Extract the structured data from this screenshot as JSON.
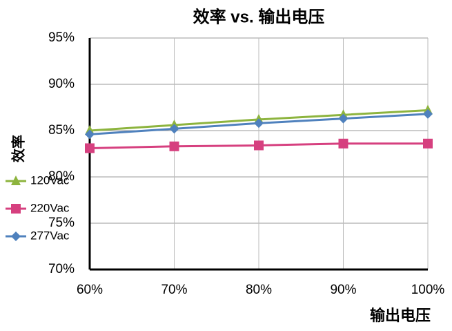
{
  "chart_data": {
    "type": "line",
    "title": "效率 vs. 输出电压",
    "x_label": "输出电压",
    "y_label": "效率",
    "categories": [
      "60%",
      "70%",
      "80%",
      "90%",
      "100%"
    ],
    "series": [
      {
        "name": "120Vac",
        "color": "#8db43e",
        "marker": "triangle",
        "values": [
          85.0,
          85.6,
          86.2,
          86.7,
          87.2
        ]
      },
      {
        "name": "220Vac",
        "color": "#d6407f",
        "marker": "square",
        "values": [
          83.1,
          83.3,
          83.4,
          83.6,
          83.6
        ]
      },
      {
        "name": "277Vac",
        "color": "#4f81bd",
        "marker": "diamond",
        "values": [
          84.6,
          85.2,
          85.8,
          86.3,
          86.8
        ]
      }
    ],
    "ylim": [
      70,
      95
    ],
    "yticks": [
      {
        "value": 70,
        "label": "70%"
      },
      {
        "value": 75,
        "label": "75%"
      },
      {
        "value": 80,
        "label": "80%"
      },
      {
        "value": 85,
        "label": "85%"
      },
      {
        "value": 90,
        "label": "90%"
      },
      {
        "value": 95,
        "label": "95%"
      }
    ],
    "grid": true
  }
}
